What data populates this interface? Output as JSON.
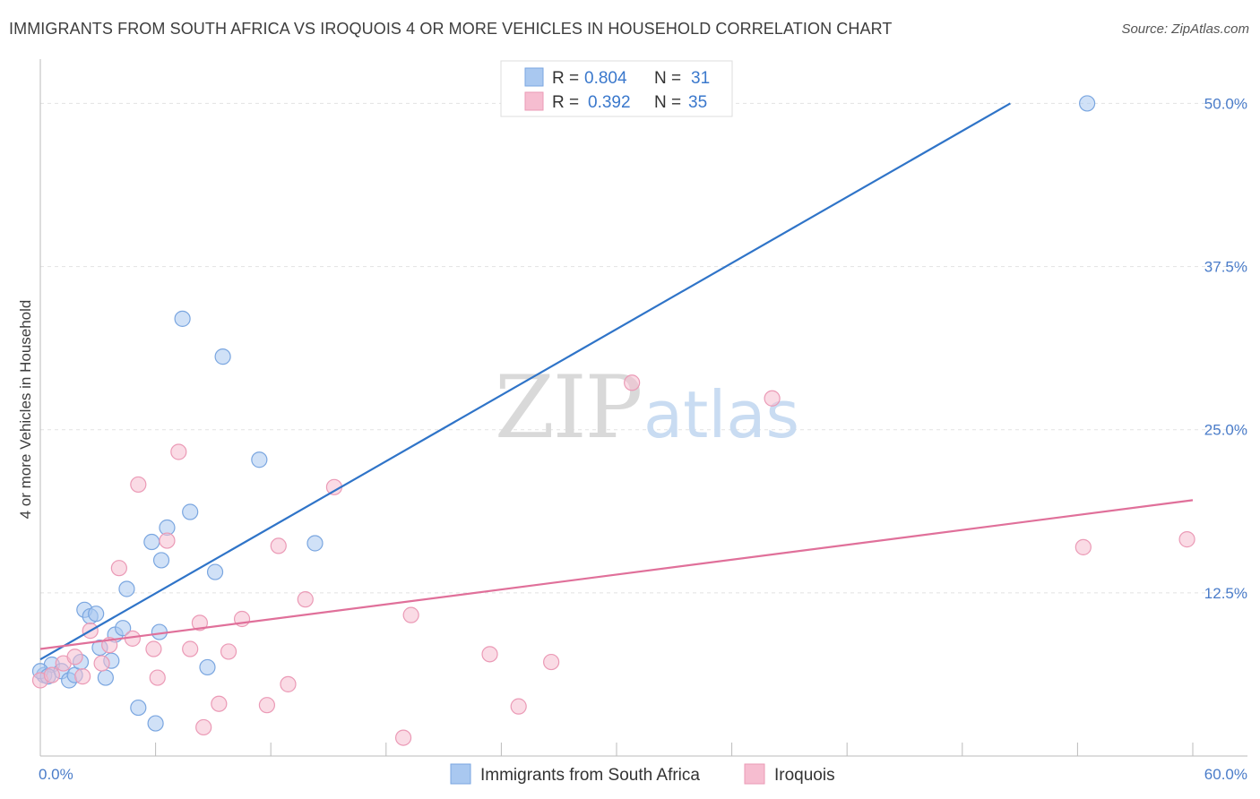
{
  "title": "IMMIGRANTS FROM SOUTH AFRICA VS IROQUOIS 4 OR MORE VEHICLES IN HOUSEHOLD CORRELATION CHART",
  "source": "Source: ZipAtlas.com",
  "watermark": {
    "zip": "ZIP",
    "atlas": "atlas"
  },
  "colors": {
    "blue_fill": "#a9c8f0",
    "blue_stroke": "#7aa6e0",
    "blue_line": "#2f74c8",
    "pink_fill": "#f6bdd0",
    "pink_stroke": "#eb9ab6",
    "pink_line": "#e0709a",
    "tick_text": "#4a7cc9",
    "grid": "#e2e2e2"
  },
  "legend": {
    "r_label": "R =",
    "n_label": "N =",
    "blue": {
      "r": "0.804",
      "n": "31"
    },
    "pink": {
      "r": "0.392",
      "n": "35"
    }
  },
  "chart_data": {
    "type": "scatter",
    "xlabel": "",
    "ylabel": "4 or more Vehicles in Household",
    "xlim": [
      0,
      60
    ],
    "ylim": [
      0,
      52.5
    ],
    "x_tick_labels": [
      {
        "value": 0,
        "label": "0.0%"
      },
      {
        "value": 60,
        "label": "60.0%"
      }
    ],
    "y_ticks": [
      {
        "value": 12.5,
        "label": "12.5%"
      },
      {
        "value": 25.0,
        "label": "25.0%"
      },
      {
        "value": 37.5,
        "label": "37.5%"
      },
      {
        "value": 50.0,
        "label": "50.0%"
      }
    ],
    "series": [
      {
        "name": "Immigrants from South Africa",
        "color": "blue",
        "trend": {
          "x0": 0,
          "y0": 7.4,
          "x1": 50.5,
          "y1": 50.0
        },
        "points": [
          [
            0.2,
            6.2
          ],
          [
            0.6,
            7.0
          ],
          [
            1.1,
            6.5
          ],
          [
            1.5,
            5.8
          ],
          [
            1.8,
            6.2
          ],
          [
            2.1,
            7.2
          ],
          [
            2.3,
            11.2
          ],
          [
            2.6,
            10.7
          ],
          [
            2.9,
            10.9
          ],
          [
            3.1,
            8.3
          ],
          [
            3.4,
            6.0
          ],
          [
            3.7,
            7.3
          ],
          [
            3.9,
            9.3
          ],
          [
            4.3,
            9.8
          ],
          [
            4.5,
            12.8
          ],
          [
            5.1,
            3.7
          ],
          [
            5.8,
            16.4
          ],
          [
            6.0,
            2.5
          ],
          [
            6.2,
            9.5
          ],
          [
            6.3,
            15.0
          ],
          [
            6.6,
            17.5
          ],
          [
            7.4,
            33.5
          ],
          [
            7.8,
            18.7
          ],
          [
            8.7,
            6.8
          ],
          [
            9.1,
            14.1
          ],
          [
            9.5,
            30.6
          ],
          [
            11.4,
            22.7
          ],
          [
            14.3,
            16.3
          ],
          [
            54.5,
            50.0
          ],
          [
            0.0,
            6.5
          ],
          [
            0.4,
            6.1
          ]
        ]
      },
      {
        "name": "Iroquois",
        "color": "pink",
        "trend": {
          "x0": 0,
          "y0": 8.2,
          "x1": 60,
          "y1": 19.6
        },
        "points": [
          [
            0.0,
            5.8
          ],
          [
            0.6,
            6.2
          ],
          [
            1.2,
            7.1
          ],
          [
            1.8,
            7.6
          ],
          [
            2.2,
            6.1
          ],
          [
            2.6,
            9.6
          ],
          [
            3.2,
            7.1
          ],
          [
            3.6,
            8.5
          ],
          [
            4.1,
            14.4
          ],
          [
            4.8,
            9.0
          ],
          [
            5.1,
            20.8
          ],
          [
            5.9,
            8.2
          ],
          [
            6.1,
            6.0
          ],
          [
            6.6,
            16.5
          ],
          [
            7.2,
            23.3
          ],
          [
            7.8,
            8.2
          ],
          [
            8.3,
            10.2
          ],
          [
            8.5,
            2.2
          ],
          [
            9.3,
            4.0
          ],
          [
            9.8,
            8.0
          ],
          [
            10.5,
            10.5
          ],
          [
            11.8,
            3.9
          ],
          [
            12.4,
            16.1
          ],
          [
            12.9,
            5.5
          ],
          [
            13.8,
            12.0
          ],
          [
            15.3,
            20.6
          ],
          [
            18.9,
            1.4
          ],
          [
            19.3,
            10.8
          ],
          [
            23.4,
            7.8
          ],
          [
            24.9,
            3.8
          ],
          [
            26.6,
            7.2
          ],
          [
            30.8,
            28.6
          ],
          [
            38.1,
            27.4
          ],
          [
            54.3,
            16.0
          ],
          [
            59.7,
            16.6
          ]
        ]
      }
    ]
  }
}
